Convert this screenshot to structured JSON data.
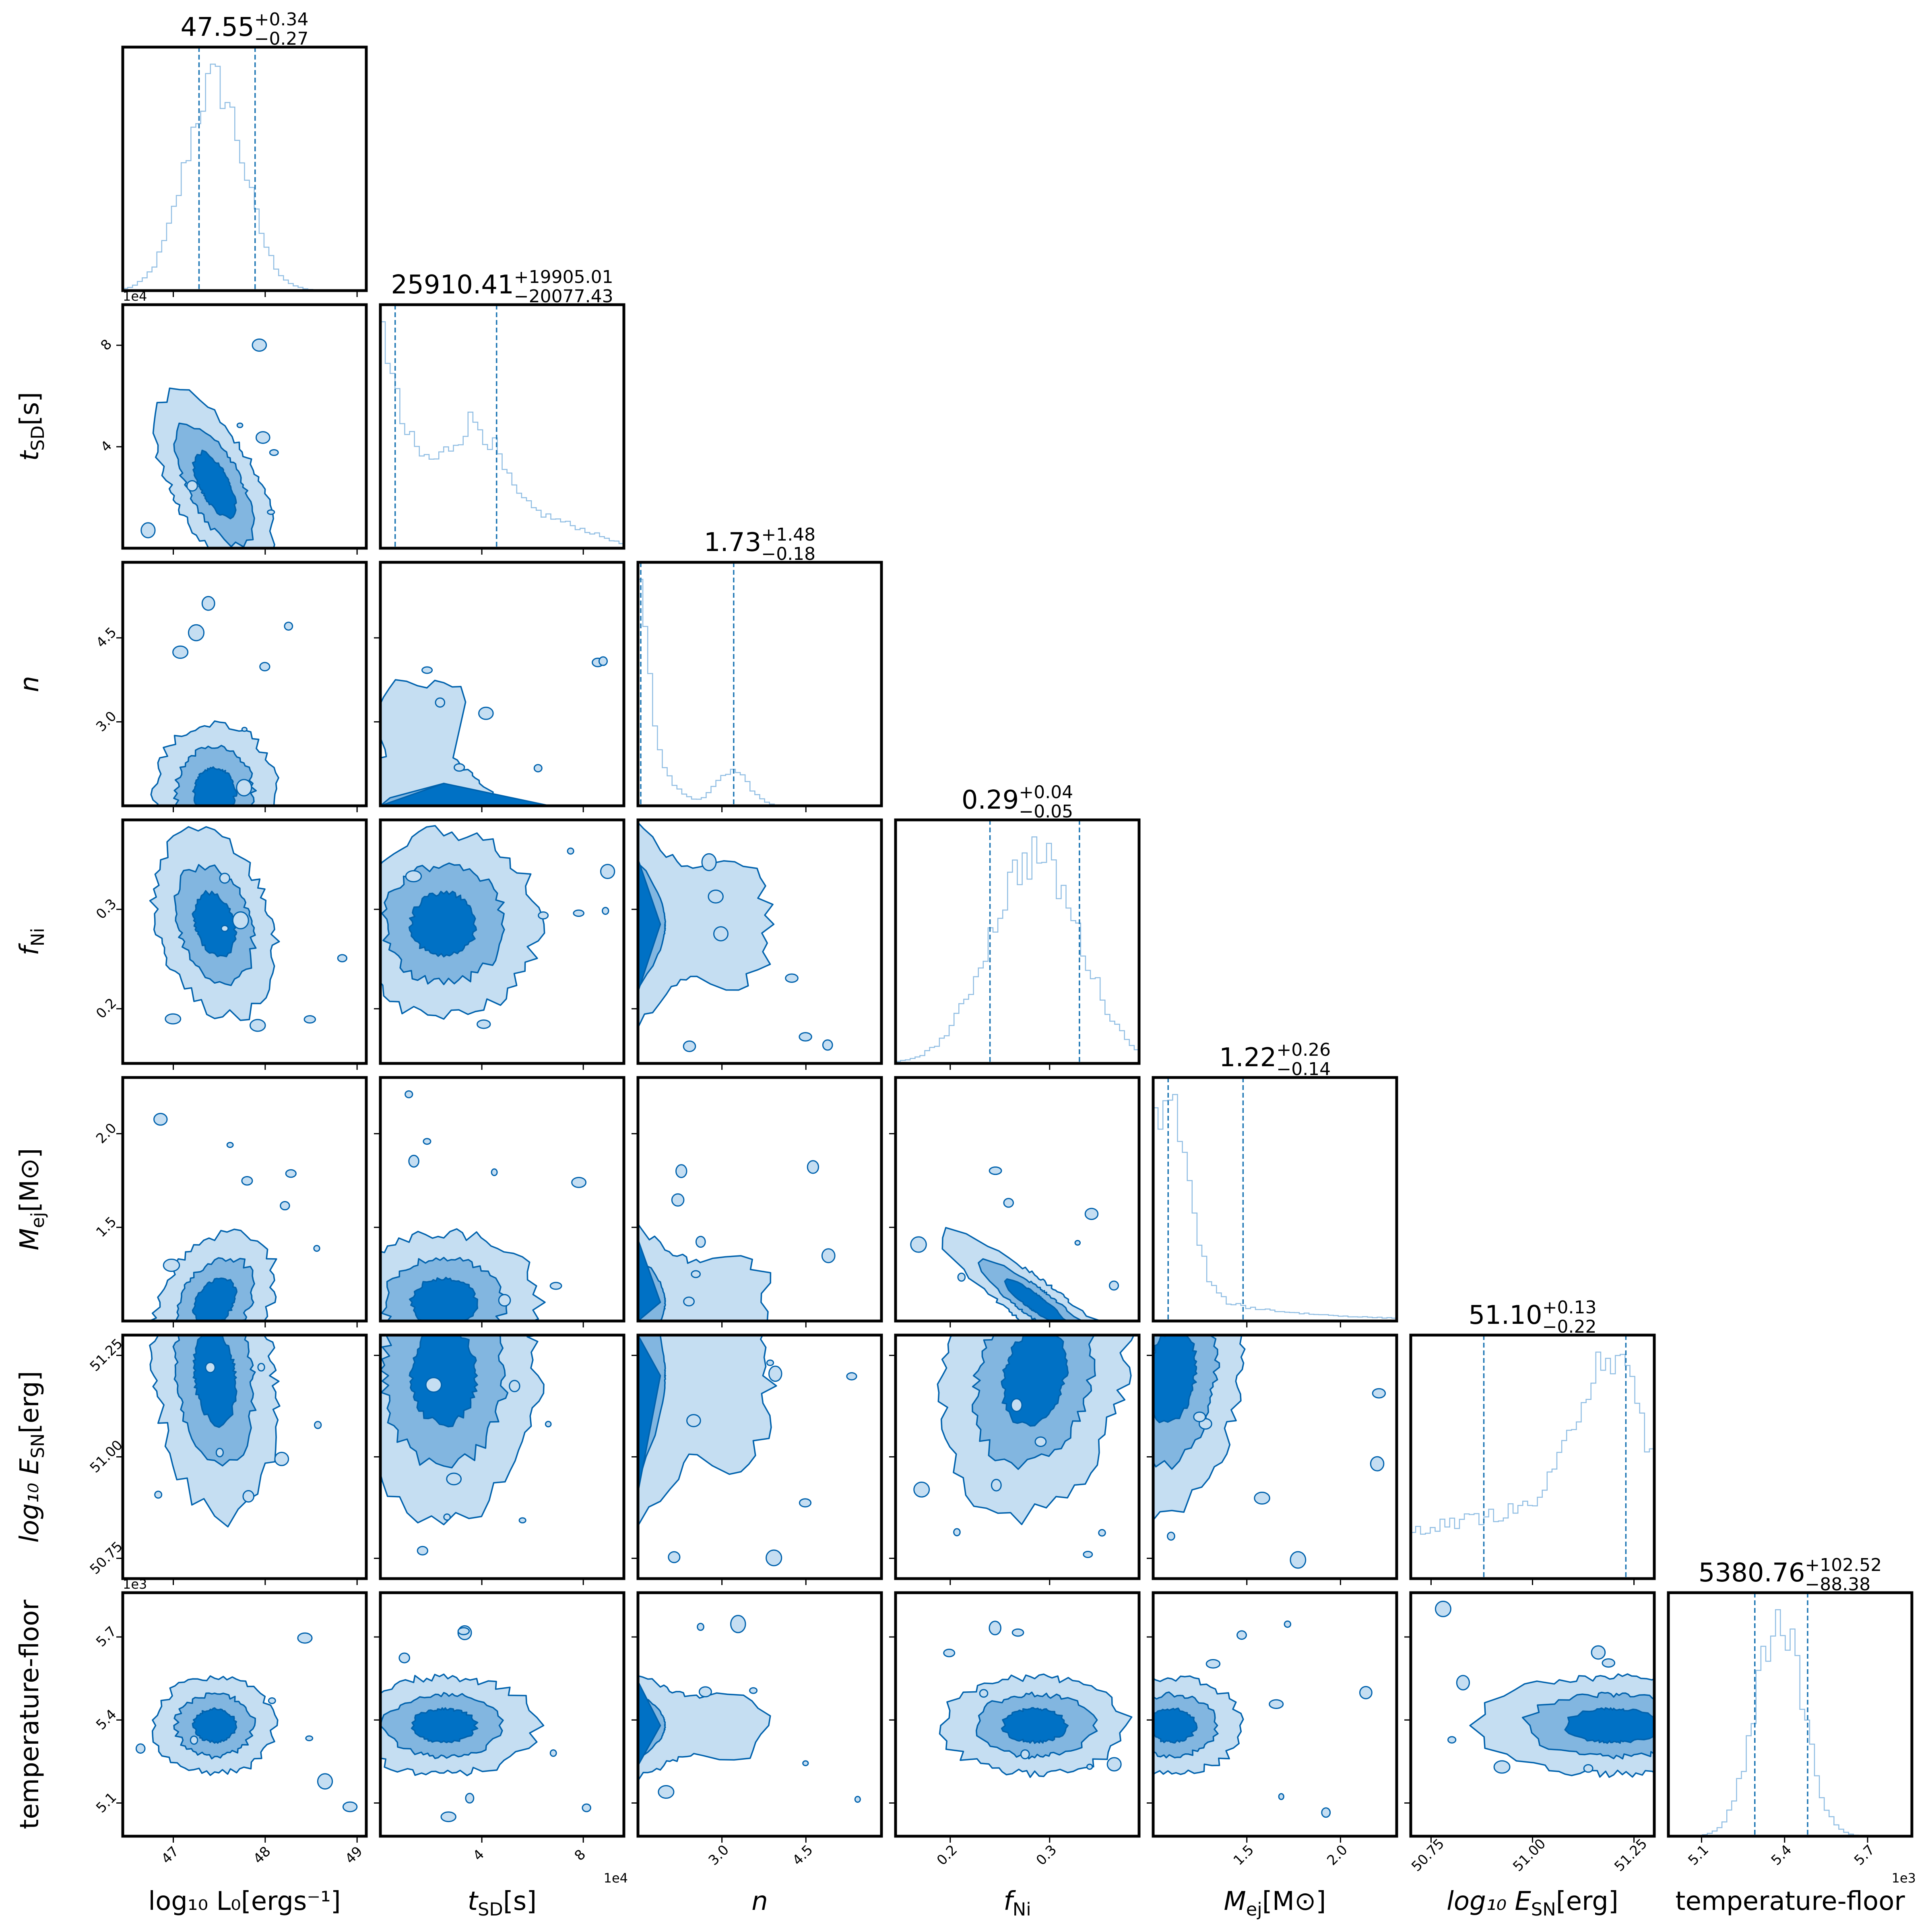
{
  "chart_data": {
    "type": "corner",
    "parameters": [
      {
        "key": "L0",
        "label": "log₁₀ L₀[ergs⁻¹]",
        "range": [
          46.45,
          49.1
        ],
        "ticks": [
          47,
          48,
          49
        ],
        "tick_labels": [
          "47",
          "48",
          "49"
        ],
        "offset": "",
        "median": 47.55,
        "plus": 0.34,
        "minus": 0.27,
        "title": "47.55",
        "title_sup": "+0.34",
        "title_sub": "−0.27"
      },
      {
        "key": "tsd",
        "label": "t_SD[s]",
        "range": [
          0.0,
          9.6
        ],
        "ticks": [
          4,
          8
        ],
        "tick_labels": [
          "4",
          "8"
        ],
        "offset": "1e4",
        "median": 25910.41,
        "plus": 19905.01,
        "minus": 20077.43,
        "title": "25910.41",
        "title_sup": "+19905.01",
        "title_sub": "−20077.43"
      },
      {
        "key": "n",
        "label": "n",
        "range": [
          1.5,
          5.85
        ],
        "ticks": [
          3.0,
          4.5
        ],
        "tick_labels": [
          "3.0",
          "4.5"
        ],
        "offset": "",
        "median": 1.73,
        "plus": 1.48,
        "minus": 0.18,
        "title": "1.73",
        "title_sup": "+1.48",
        "title_sub": "−0.18"
      },
      {
        "key": "fni",
        "label": "f_Ni",
        "range": [
          0.145,
          0.39
        ],
        "ticks": [
          0.2,
          0.3
        ],
        "tick_labels": [
          "0.2",
          "0.3"
        ],
        "offset": "",
        "median": 0.29,
        "plus": 0.04,
        "minus": 0.05,
        "title": "0.29",
        "title_sup": "+0.04",
        "title_sub": "−0.05"
      },
      {
        "key": "mej",
        "label": "M_ej[M⊙]",
        "range": [
          1.0,
          2.3
        ],
        "ticks": [
          1.5,
          2.0
        ],
        "tick_labels": [
          "1.5",
          "2.0"
        ],
        "offset": "",
        "median": 1.22,
        "plus": 0.26,
        "minus": 0.14,
        "title": "1.22",
        "title_sup": "+0.26",
        "title_sub": "−0.14"
      },
      {
        "key": "esn",
        "label": "log₁₀ E_SN[erg]",
        "range": [
          50.7,
          51.3
        ],
        "ticks": [
          50.75,
          51.0,
          51.25
        ],
        "tick_labels": [
          "50.75",
          "51.00",
          "51.25"
        ],
        "offset": "",
        "median": 51.1,
        "plus": 0.13,
        "minus": 0.22,
        "title": "51.10",
        "title_sup": "+0.13",
        "title_sub": "−0.22"
      },
      {
        "key": "tfloor",
        "label": "temperature-floor",
        "range": [
          4.98,
          5.86
        ],
        "ticks": [
          5.1,
          5.4,
          5.7
        ],
        "tick_labels": [
          "5.1",
          "5.4",
          "5.7"
        ],
        "offset": "1e3",
        "median": 5380.76,
        "plus": 102.52,
        "minus": 88.38,
        "title": "5380.76",
        "title_sup": "+102.52",
        "title_sub": "−88.38"
      }
    ],
    "colors": {
      "level1": "#c5def2",
      "level2": "#82b6e0",
      "level3": "#0071c5",
      "line": "#0062ad",
      "hist": "#8fbde3",
      "quantile": "#1f77b4"
    }
  }
}
